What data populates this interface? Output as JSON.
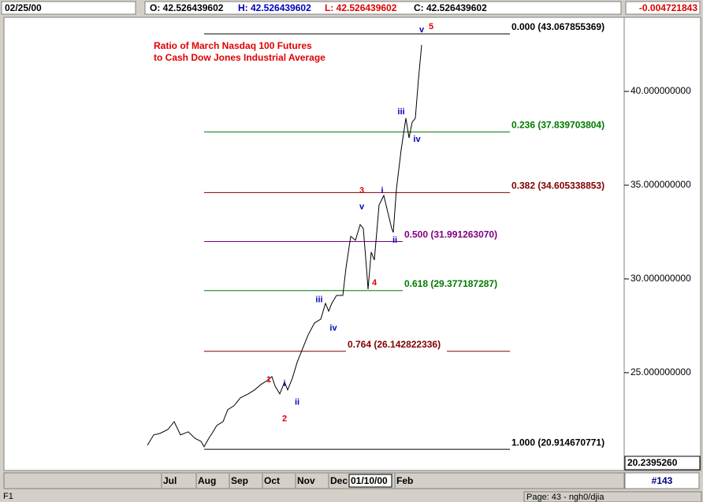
{
  "header": {
    "date": "02/25/00",
    "open": "O: 42.526439602",
    "high": "H: 42.526439602",
    "low": "L: 42.526439602",
    "close": "C: 42.526439602",
    "change": "-0.004721843"
  },
  "chart_data": {
    "type": "line",
    "title": [
      "Ratio of March Nasdaq 100 Futures",
      "to Cash Dow Jones Industrial Average"
    ],
    "x": [
      0,
      4,
      8,
      13,
      17,
      21,
      26,
      30,
      34,
      36,
      39,
      41,
      44,
      48,
      51,
      55,
      59,
      64,
      68,
      72,
      76,
      79,
      81,
      84,
      87,
      89,
      92,
      95,
      99,
      102,
      106,
      110,
      113,
      115,
      117,
      120,
      124,
      126,
      129,
      132,
      135,
      137,
      139,
      140,
      142,
      144,
      147,
      150,
      152,
      155,
      156,
      158,
      161,
      164,
      166,
      168,
      170,
      172,
      174
    ],
    "series": [
      {
        "color": "#000000",
        "values": [
          21.13,
          21.68,
          21.76,
          21.97,
          22.39,
          21.68,
          21.85,
          21.51,
          21.34,
          21.05,
          21.51,
          21.76,
          22.18,
          22.39,
          23.03,
          23.24,
          23.66,
          23.87,
          24.08,
          24.37,
          24.58,
          24.79,
          24.29,
          23.87,
          24.5,
          24.08,
          24.71,
          25.55,
          26.39,
          27.02,
          27.65,
          27.86,
          28.7,
          28.28,
          28.7,
          29.12,
          29.12,
          30.59,
          32.27,
          32.06,
          32.9,
          32.69,
          30.59,
          29.45,
          31.43,
          31.01,
          33.95,
          34.45,
          33.74,
          32.69,
          32.48,
          34.79,
          36.89,
          38.57,
          37.52,
          38.36,
          38.57,
          40.67,
          42.48
        ]
      }
    ],
    "xlim": [
      -91,
      302
    ],
    "ylim": [
      20.5,
      43.95
    ],
    "yticks": [
      {
        "value": 25,
        "label": "25.000000000"
      },
      {
        "value": 30,
        "label": "30.000000000"
      },
      {
        "value": 35,
        "label": "35.000000000"
      },
      {
        "value": 40,
        "label": "40.000000000"
      }
    ],
    "xticks": [
      {
        "value": 9,
        "label": "Jul"
      },
      {
        "value": 31,
        "label": "Aug"
      },
      {
        "value": 52,
        "label": "Sep"
      },
      {
        "value": 73,
        "label": "Oct"
      },
      {
        "value": 94,
        "label": "Nov"
      },
      {
        "value": 115,
        "label": "Dec"
      },
      {
        "value": 157,
        "label": "Feb"
      }
    ],
    "cursor": {
      "value": 128,
      "label": "01/10/00"
    },
    "levels": [
      {
        "value": 43.067855369,
        "label": "0.000 (43.067855369)",
        "color": "#000000",
        "segments": [
          [
            36,
            230
          ]
        ]
      },
      {
        "value": 37.839703804,
        "label": "0.236 (37.839703804)",
        "color": "#007a00",
        "segments": [
          [
            36,
            230
          ]
        ]
      },
      {
        "value": 34.605338853,
        "label": "0.382 (34.605338853)",
        "color": "#800000",
        "segments": [
          [
            36,
            230
          ]
        ]
      },
      {
        "value": 31.99126307,
        "label": "0.500 (31.991263070)",
        "color": "#800080",
        "segments": [
          [
            36,
            162
          ]
        ]
      },
      {
        "value": 29.377187287,
        "label": "0.618 (29.377187287)",
        "color": "#007a00",
        "segments": [
          [
            36,
            162
          ]
        ]
      },
      {
        "value": 26.142822336,
        "label": "0.764 (26.142822336)",
        "color": "#800000",
        "segments": [
          [
            36,
            126
          ],
          [
            190,
            230
          ]
        ]
      },
      {
        "value": 20.914670771,
        "label": "1.000 (20.914670771)",
        "color": "#000000",
        "segments": [
          [
            36,
            230
          ]
        ]
      }
    ],
    "annotations": [
      {
        "text": "v",
        "x": 174,
        "y": 43.28,
        "color": "#0000c0"
      },
      {
        "text": "5",
        "x": 180,
        "y": 43.45,
        "color": "#e00000"
      },
      {
        "text": "iii",
        "x": 161,
        "y": 38.91,
        "color": "#0000c0"
      },
      {
        "text": "iv",
        "x": 171,
        "y": 37.44,
        "color": "#0000c0"
      },
      {
        "text": "3",
        "x": 136,
        "y": 34.71,
        "color": "#e00000"
      },
      {
        "text": "i",
        "x": 149,
        "y": 34.71,
        "color": "#0000c0"
      },
      {
        "text": "v",
        "x": 136,
        "y": 33.83,
        "color": "#0000c0"
      },
      {
        "text": "ii",
        "x": 157,
        "y": 32.06,
        "color": "#0000c0"
      },
      {
        "text": "4",
        "x": 144,
        "y": 29.79,
        "color": "#e00000"
      },
      {
        "text": "iii",
        "x": 109,
        "y": 28.87,
        "color": "#0000c0"
      },
      {
        "text": "iv",
        "x": 118,
        "y": 27.36,
        "color": "#0000c0"
      },
      {
        "text": "1",
        "x": 77,
        "y": 24.62,
        "color": "#e00000"
      },
      {
        "text": "i",
        "x": 87,
        "y": 24.41,
        "color": "#0000c0"
      },
      {
        "text": "ii",
        "x": 95,
        "y": 23.41,
        "color": "#0000c0"
      },
      {
        "text": "2",
        "x": 87,
        "y": 22.53,
        "color": "#e00000"
      }
    ],
    "bottom_value": "20.2395260"
  },
  "footer": {
    "bar": "#143",
    "key": "F1",
    "page": "Page: 43 - ngh0/djia"
  }
}
